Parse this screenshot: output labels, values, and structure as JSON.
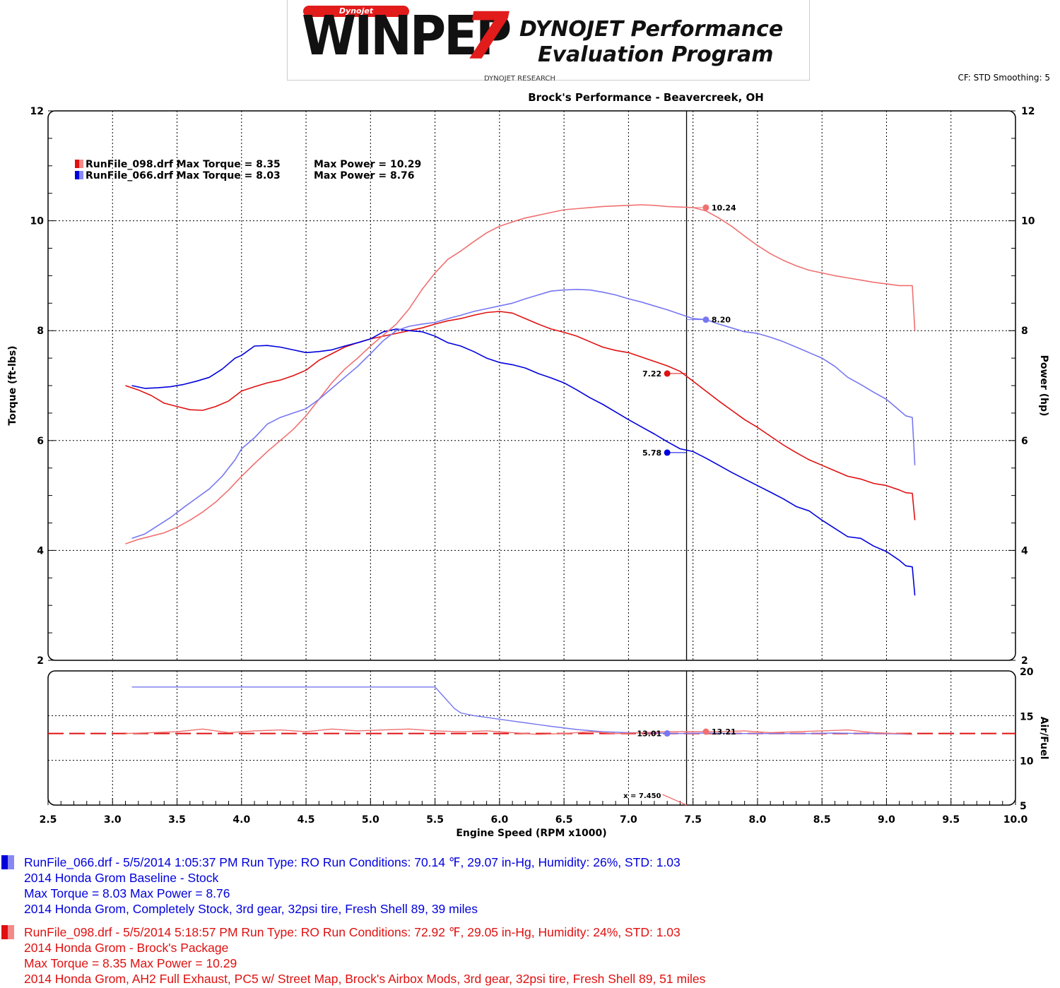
{
  "logo": {
    "badge": "Dynojet",
    "mark": "WINPEP",
    "mark_number": "7",
    "tagline_line1": "DYNOJET Performance",
    "tagline_line2": "Evaluation Program",
    "sub": "DYNOJET RESEARCH"
  },
  "header": {
    "settings": "CF: STD  Smoothing: 5"
  },
  "colors": {
    "run066_torque": "#0000dd",
    "run066_power": "#7777f2",
    "run098_torque": "#e01010",
    "run098_power": "#f07070"
  },
  "chart_data": [
    {
      "type": "line",
      "title": "Brock's Performance - Beavercreek, OH",
      "xlabel": "Engine Speed (RPM x1000)",
      "ylabel": "Torque (ft-lbs)",
      "y2label": "Power (hp)",
      "xlim": [
        2.5,
        10.0
      ],
      "xticks": [
        "2.5",
        "3.0",
        "3.5",
        "4.0",
        "4.5",
        "5.0",
        "5.5",
        "6.0",
        "6.5",
        "7.0",
        "7.5",
        "8.0",
        "8.5",
        "9.0",
        "9.5",
        "10.0"
      ],
      "ylim": [
        2,
        12
      ],
      "yticks": [
        "2",
        "4",
        "6",
        "8",
        "10",
        "12"
      ],
      "y2ticks": [
        "2",
        "4",
        "6",
        "8",
        "10",
        "12"
      ],
      "grid": true,
      "legend": [
        {
          "label": "RunFile_098.drf Max Torque = 8.35",
          "power": "Max Power = 10.29",
          "color": "#e01010"
        },
        {
          "label": "RunFile_066.drf Max Torque = 8.03",
          "power": "Max Power = 8.76",
          "color": "#0000dd"
        }
      ],
      "cursor_x": 7.45,
      "series": [
        {
          "id": "t098",
          "axis": "left",
          "color": "#e01010",
          "x": [
            3.1,
            3.2,
            3.3,
            3.4,
            3.5,
            3.6,
            3.7,
            3.8,
            3.9,
            4.0,
            4.1,
            4.2,
            4.3,
            4.4,
            4.5,
            4.6,
            4.7,
            4.8,
            4.9,
            5.0,
            5.1,
            5.2,
            5.3,
            5.4,
            5.5,
            5.6,
            5.7,
            5.8,
            5.9,
            6.0,
            6.1,
            6.2,
            6.3,
            6.4,
            6.5,
            6.6,
            6.7,
            6.8,
            6.9,
            7.0,
            7.1,
            7.2,
            7.3,
            7.4,
            7.5,
            7.6,
            7.7,
            7.8,
            7.9,
            8.0,
            8.1,
            8.2,
            8.3,
            8.4,
            8.5,
            8.6,
            8.7,
            8.8,
            8.9,
            9.0,
            9.1,
            9.15,
            9.2,
            9.22
          ],
          "values": [
            7.0,
            6.92,
            6.82,
            6.68,
            6.62,
            6.56,
            6.55,
            6.62,
            6.72,
            6.9,
            6.98,
            7.05,
            7.1,
            7.18,
            7.28,
            7.46,
            7.58,
            7.7,
            7.78,
            7.85,
            7.9,
            7.95,
            8.0,
            8.05,
            8.12,
            8.18,
            8.22,
            8.28,
            8.33,
            8.35,
            8.32,
            8.22,
            8.12,
            8.03,
            7.97,
            7.9,
            7.8,
            7.7,
            7.64,
            7.6,
            7.52,
            7.44,
            7.36,
            7.26,
            7.08,
            6.9,
            6.72,
            6.55,
            6.38,
            6.24,
            6.08,
            5.92,
            5.78,
            5.65,
            5.55,
            5.45,
            5.35,
            5.3,
            5.22,
            5.18,
            5.1,
            5.05,
            5.04,
            4.55
          ]
        },
        {
          "id": "t066",
          "axis": "left",
          "color": "#0000dd",
          "x": [
            3.15,
            3.25,
            3.35,
            3.45,
            3.55,
            3.65,
            3.75,
            3.85,
            3.95,
            4.0,
            4.1,
            4.2,
            4.3,
            4.4,
            4.5,
            4.6,
            4.7,
            4.8,
            4.9,
            5.0,
            5.1,
            5.2,
            5.3,
            5.4,
            5.5,
            5.6,
            5.7,
            5.8,
            5.9,
            6.0,
            6.1,
            6.2,
            6.3,
            6.4,
            6.5,
            6.6,
            6.7,
            6.8,
            6.9,
            7.0,
            7.1,
            7.2,
            7.3,
            7.4,
            7.5,
            7.6,
            7.7,
            7.8,
            7.9,
            8.0,
            8.1,
            8.2,
            8.3,
            8.4,
            8.5,
            8.6,
            8.7,
            8.8,
            8.9,
            9.0,
            9.1,
            9.15,
            9.2,
            9.22
          ],
          "values": [
            7.0,
            6.95,
            6.96,
            6.98,
            7.02,
            7.08,
            7.15,
            7.3,
            7.5,
            7.55,
            7.72,
            7.73,
            7.7,
            7.65,
            7.6,
            7.62,
            7.65,
            7.72,
            7.78,
            7.85,
            7.98,
            8.03,
            8.0,
            7.98,
            7.9,
            7.78,
            7.72,
            7.62,
            7.5,
            7.42,
            7.38,
            7.32,
            7.22,
            7.14,
            7.05,
            6.92,
            6.78,
            6.66,
            6.52,
            6.38,
            6.25,
            6.12,
            5.98,
            5.85,
            5.8,
            5.68,
            5.55,
            5.42,
            5.3,
            5.18,
            5.06,
            4.94,
            4.8,
            4.72,
            4.55,
            4.4,
            4.25,
            4.22,
            4.08,
            3.98,
            3.82,
            3.72,
            3.7,
            3.18
          ]
        },
        {
          "id": "p098",
          "axis": "right",
          "color": "#f07070",
          "x": [
            3.1,
            3.2,
            3.3,
            3.4,
            3.5,
            3.6,
            3.7,
            3.8,
            3.9,
            4.0,
            4.1,
            4.2,
            4.3,
            4.4,
            4.5,
            4.6,
            4.7,
            4.8,
            4.9,
            5.0,
            5.1,
            5.2,
            5.3,
            5.4,
            5.5,
            5.6,
            5.7,
            5.8,
            5.9,
            6.0,
            6.1,
            6.2,
            6.3,
            6.4,
            6.5,
            6.6,
            6.7,
            6.8,
            6.9,
            7.0,
            7.1,
            7.2,
            7.3,
            7.4,
            7.5,
            7.6,
            7.7,
            7.8,
            7.9,
            8.0,
            8.1,
            8.2,
            8.3,
            8.4,
            8.5,
            8.6,
            8.7,
            8.8,
            8.9,
            9.0,
            9.1,
            9.15,
            9.2,
            9.22
          ],
          "values": [
            4.12,
            4.2,
            4.26,
            4.32,
            4.42,
            4.55,
            4.7,
            4.88,
            5.1,
            5.35,
            5.58,
            5.8,
            6.0,
            6.2,
            6.45,
            6.75,
            7.05,
            7.3,
            7.5,
            7.72,
            7.92,
            8.12,
            8.4,
            8.75,
            9.05,
            9.3,
            9.45,
            9.62,
            9.78,
            9.9,
            9.98,
            10.05,
            10.1,
            10.15,
            10.2,
            10.22,
            10.24,
            10.26,
            10.27,
            10.28,
            10.29,
            10.28,
            10.26,
            10.25,
            10.24,
            10.18,
            10.05,
            9.9,
            9.72,
            9.55,
            9.4,
            9.28,
            9.18,
            9.1,
            9.05,
            9.0,
            8.96,
            8.92,
            8.88,
            8.85,
            8.82,
            8.82,
            8.82,
            8.0
          ]
        },
        {
          "id": "p066",
          "axis": "right",
          "color": "#7777f2",
          "x": [
            3.15,
            3.25,
            3.35,
            3.45,
            3.55,
            3.65,
            3.75,
            3.85,
            3.95,
            4.0,
            4.1,
            4.2,
            4.3,
            4.4,
            4.5,
            4.6,
            4.7,
            4.8,
            4.9,
            5.0,
            5.1,
            5.2,
            5.3,
            5.4,
            5.5,
            5.6,
            5.7,
            5.8,
            5.9,
            6.0,
            6.1,
            6.2,
            6.3,
            6.4,
            6.5,
            6.6,
            6.7,
            6.8,
            6.9,
            7.0,
            7.1,
            7.2,
            7.3,
            7.4,
            7.5,
            7.6,
            7.7,
            7.8,
            7.9,
            8.0,
            8.1,
            8.2,
            8.3,
            8.4,
            8.5,
            8.6,
            8.7,
            8.8,
            8.9,
            9.0,
            9.1,
            9.15,
            9.2,
            9.22
          ],
          "values": [
            4.22,
            4.3,
            4.45,
            4.6,
            4.78,
            4.95,
            5.12,
            5.35,
            5.65,
            5.85,
            6.05,
            6.3,
            6.42,
            6.5,
            6.58,
            6.75,
            6.95,
            7.15,
            7.35,
            7.58,
            7.82,
            8.0,
            8.08,
            8.12,
            8.15,
            8.22,
            8.28,
            8.35,
            8.4,
            8.45,
            8.5,
            8.58,
            8.65,
            8.72,
            8.74,
            8.75,
            8.74,
            8.7,
            8.65,
            8.58,
            8.52,
            8.45,
            8.38,
            8.3,
            8.22,
            8.2,
            8.12,
            8.05,
            7.98,
            7.95,
            7.88,
            7.8,
            7.7,
            7.6,
            7.5,
            7.35,
            7.15,
            7.02,
            6.88,
            6.75,
            6.55,
            6.45,
            6.42,
            5.55
          ]
        }
      ],
      "markers": [
        {
          "series": "p098",
          "x": 7.6,
          "y": 10.24,
          "label": "10.24",
          "label_side": "right"
        },
        {
          "series": "p066",
          "x": 7.6,
          "y": 8.2,
          "label": "8.20",
          "label_side": "right"
        },
        {
          "series": "t098",
          "x": 7.3,
          "y": 7.22,
          "label": "7.22",
          "label_side": "left"
        },
        {
          "series": "t066",
          "x": 7.3,
          "y": 5.78,
          "label": "5.78",
          "label_side": "left"
        }
      ]
    },
    {
      "type": "line",
      "ylabel": "Air/Fuel",
      "xlim": [
        2.5,
        10.0
      ],
      "ylim": [
        5,
        20
      ],
      "y2ticks": [
        "5",
        "10",
        "15",
        "20"
      ],
      "grid": true,
      "target_line": 13.0,
      "cursor_label": "x = 7.450",
      "series": [
        {
          "id": "af066",
          "color": "#7777f2",
          "x": [
            3.15,
            3.5,
            4.0,
            4.5,
            5.0,
            5.5,
            5.55,
            5.6,
            5.65,
            5.7,
            5.8,
            6.0,
            6.2,
            6.4,
            6.6,
            6.8,
            7.0,
            7.2,
            7.4,
            7.6,
            7.8,
            8.0,
            8.2,
            8.4,
            8.6,
            8.8,
            9.0,
            9.2
          ],
          "values": [
            18.2,
            18.2,
            18.2,
            18.2,
            18.2,
            18.2,
            17.4,
            16.6,
            15.8,
            15.3,
            15.0,
            14.6,
            14.2,
            13.8,
            13.45,
            13.2,
            13.1,
            13.05,
            13.0,
            13.05,
            13.0,
            13.0,
            13.0,
            13.0,
            13.05,
            13.0,
            13.0,
            12.9
          ]
        },
        {
          "id": "af098",
          "color": "#f07070",
          "x": [
            3.1,
            3.3,
            3.5,
            3.7,
            3.9,
            4.1,
            4.3,
            4.5,
            4.7,
            4.9,
            5.1,
            5.3,
            5.5,
            5.7,
            5.9,
            6.1,
            6.3,
            6.5,
            6.7,
            6.9,
            7.1,
            7.3,
            7.5,
            7.7,
            7.9,
            8.1,
            8.3,
            8.5,
            8.7,
            8.9,
            9.1,
            9.2
          ],
          "values": [
            13.0,
            13.1,
            13.2,
            13.5,
            13.1,
            13.3,
            13.4,
            13.2,
            13.5,
            13.3,
            13.4,
            13.5,
            13.3,
            13.2,
            13.3,
            13.1,
            12.9,
            13.0,
            13.2,
            13.0,
            13.1,
            13.2,
            13.21,
            13.2,
            13.3,
            13.1,
            13.2,
            13.3,
            13.4,
            13.1,
            13.0,
            12.9
          ]
        }
      ],
      "markers": [
        {
          "series": "af066",
          "x": 7.3,
          "y": 13.01,
          "label": "13.01",
          "label_side": "left"
        },
        {
          "series": "af098",
          "x": 7.6,
          "y": 13.21,
          "label": "13.21",
          "label_side": "right"
        }
      ]
    }
  ],
  "runs": [
    {
      "color_dark": "#0000dd",
      "color_light": "#8888f5",
      "line1": "RunFile_066.drf - 5/5/2014 1:05:37 PM  Run Type: RO  Run Conditions: 70.14 ℉, 29.07 in-Hg,  Humidity:  26%, STD: 1.03",
      "line2": "2014 Honda Grom Baseline - Stock",
      "line3": "Max Torque = 8.03  Max Power = 8.76",
      "line4": "2014 Honda Grom, Completely Stock, 3rd gear, 32psi tire, Fresh Shell 89, 39 miles"
    },
    {
      "color_dark": "#e01010",
      "color_light": "#f58888",
      "line1": "RunFile_098.drf - 5/5/2014 5:18:57 PM  Run Type: RO  Run Conditions: 72.92 ℉, 29.05 in-Hg,  Humidity:  24%, STD: 1.03",
      "line2": "2014 Honda Grom - Brock's Package",
      "line3": "Max Torque = 8.35  Max Power = 10.29",
      "line4": "2014 Honda Grom, AH2 Full Exhaust, PC5 w/ Street Map, Brock's Airbox Mods, 3rd gear, 32psi tire, Fresh Shell 89, 51 miles"
    }
  ]
}
